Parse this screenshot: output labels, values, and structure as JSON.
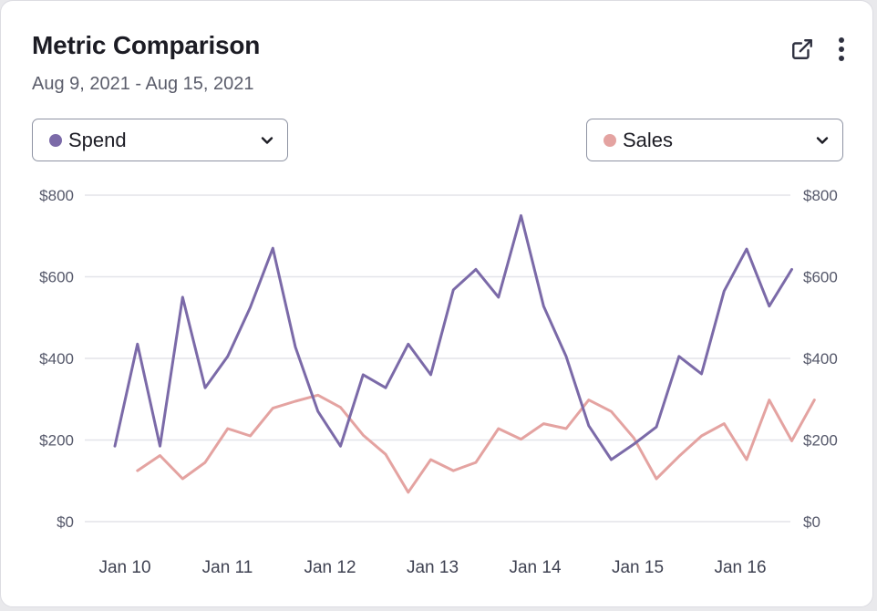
{
  "header": {
    "title": "Metric Comparison",
    "date_range": "Aug 9, 2021 - Aug 15, 2021",
    "open_icon": "external-link-icon",
    "more_icon": "vertical-ellipsis-icon"
  },
  "selectors": {
    "left": {
      "label": "Spend",
      "color": "#7b6aa8"
    },
    "right": {
      "label": "Sales",
      "color": "#e4a3a1"
    }
  },
  "chart_data": {
    "type": "line",
    "title": "Metric Comparison",
    "xlabel": "",
    "ylabel": "",
    "x_tick_labels": [
      "Jan 10",
      "Jan 11",
      "Jan 12",
      "Jan 13",
      "Jan 14",
      "Jan 15",
      "Jan 16"
    ],
    "y_ticks": [
      "$0",
      "$200",
      "$400",
      "$600",
      "$800"
    ],
    "ylim": [
      0,
      800
    ],
    "grid": true,
    "series": [
      {
        "name": "Spend",
        "axis": "left",
        "color": "#7b6aa8",
        "x": [
          0,
          0.22,
          0.44,
          0.66,
          0.88,
          1.1,
          1.32,
          1.54,
          1.76,
          1.98,
          2.2,
          2.42,
          2.64,
          2.86,
          3.08,
          3.3,
          3.52,
          3.74,
          3.96,
          4.18,
          4.4,
          4.62,
          4.84,
          5.06,
          5.28,
          5.5,
          5.72,
          5.94,
          6.16,
          6.38,
          6.6
        ],
        "values": [
          185,
          435,
          185,
          550,
          328,
          405,
          525,
          670,
          428,
          270,
          185,
          360,
          328,
          435,
          360,
          568,
          618,
          550,
          750,
          528,
          405,
          235,
          152,
          190,
          232,
          405,
          362,
          565,
          668,
          528,
          618
        ]
      },
      {
        "name": "Sales",
        "axis": "right",
        "color": "#e4a3a1",
        "x": [
          0.22,
          0.44,
          0.66,
          0.88,
          1.1,
          1.32,
          1.54,
          1.76,
          1.98,
          2.2,
          2.42,
          2.64,
          2.86,
          3.08,
          3.3,
          3.52,
          3.74,
          3.96,
          4.18,
          4.4,
          4.62,
          4.84,
          5.06,
          5.28,
          5.5,
          5.72,
          5.94,
          6.16,
          6.38,
          6.6,
          6.82
        ],
        "values": [
          125,
          162,
          105,
          145,
          228,
          210,
          278,
          295,
          310,
          280,
          212,
          165,
          72,
          152,
          125,
          145,
          228,
          202,
          240,
          228,
          298,
          270,
          205,
          105,
          160,
          210,
          240,
          152,
          298,
          198,
          298
        ]
      }
    ]
  }
}
